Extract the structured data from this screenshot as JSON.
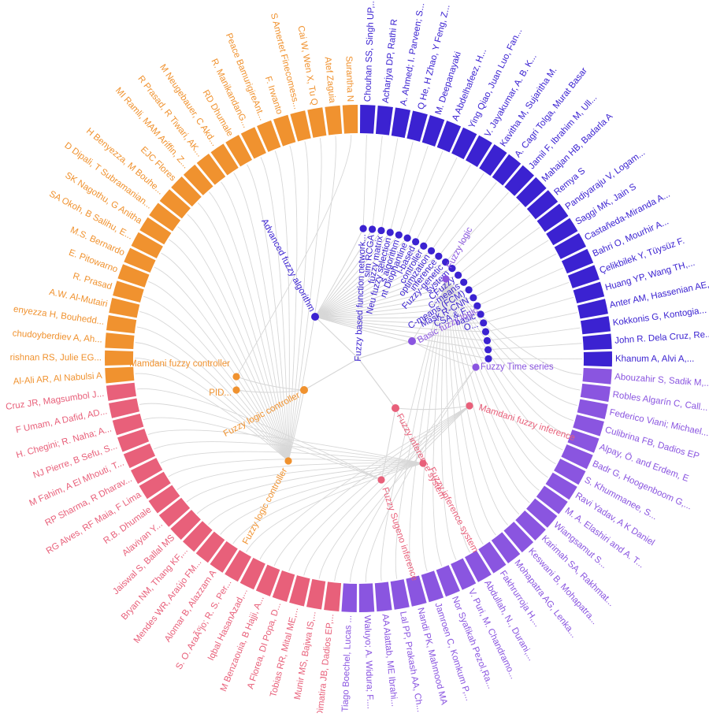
{
  "chart_data": {
    "type": "radial-dendrogram",
    "colors": {
      "advanced": "#3b22d1",
      "basic": "#8a55e0",
      "fis": "#e8607a",
      "flc": "#f0922f",
      "link": "#d7d7d7"
    },
    "groups": [
      {
        "key": "advanced",
        "node_label": "Advanced fuzzy algorithm",
        "children": [
          {
            "label": "Fuzzy based function network...",
            "leaves": [
              "Chouhan SS, Singh UP,..."
            ]
          },
          {
            "label": "sim RCGA",
            "leaves": [
              "Acharjya DP, Rathi R"
            ]
          },
          {
            "label": "fuzzy matrix",
            "leaves": [
              "A. Ahmed; I. Parveen; S..."
            ]
          },
          {
            "label": "Neu fuzzy selection",
            "leaves": [
              "Q He, H Zhao, Y Feng, Z..."
            ]
          },
          {
            "label": "s algorithm",
            "leaves": [
              "M. Deepanayaki"
            ]
          },
          {
            "label": "nt Diophantine",
            "leaves": [
              "A Abdelhafeez, H..."
            ]
          },
          {
            "label": "l-based",
            "leaves": [
              "Ying Qiao, Juan Luo, Fan..."
            ]
          },
          {
            "label": "controller",
            "leaves": [
              "V. Jayakumar, A. B. K..."
            ]
          },
          {
            "label": "optimization",
            "leaves": [
              "Kavitha M, Sujaritha M."
            ]
          },
          {
            "label": "inference",
            "leaves": [
              "A. Cagri Tolga, Murat Basar"
            ]
          },
          {
            "label": "Fuzzy-genetic",
            "leaves": [
              "Jamil F, Ibrahim M, Ull..."
            ]
          },
          {
            "label": "system",
            "leaves": [
              "Mahajan HB, Badarla A"
            ]
          },
          {
            "label": "CFuzzy",
            "leaves": [
              "Remya S"
            ]
          },
          {
            "label": "C-means",
            "leaves": [
              "Pandiyaraju V, Logam..."
            ]
          },
          {
            "label": "C-means (FCM)",
            "leaves": [
              "Saggi MK, Jain S"
            ]
          },
          {
            "label": "Mask R-CNN",
            "leaves": [
              "Castañeda-Miranda A..."
            ]
          },
          {
            "label": "CSA & F...",
            "leaves": [
              "Bahri O, Mourhir A..."
            ]
          },
          {
            "label": "basic",
            "leaves": [
              "Çelikbilek Y, Tüysüz F."
            ]
          },
          {
            "label": "O...",
            "leaves": [
              "Huang YP, Wang TH,..."
            ]
          },
          {
            "label": "",
            "leaves": [
              "Anter AM, Hassenian AE,..."
            ]
          },
          {
            "label": "",
            "leaves": [
              "Kokkonis G, Kontogia..."
            ]
          },
          {
            "label": "",
            "leaves": [
              "John R. Dela Cruz, Re..."
            ]
          },
          {
            "label": "",
            "leaves": [
              "Khanum A, Alvi A,..."
            ]
          }
        ]
      },
      {
        "key": "basic",
        "node_label": "Basic fuzzy logic",
        "children": [
          {
            "label": "Fuzzy logic",
            "leaves": [
              "Abouzahir S, Sadik M,...",
              "Robles Algarín C, Call...",
              "Federico Viani; Michael...",
              "Culibrina FB, Dadios EP",
              "Alpay, Ö. and Erdem, E",
              "Badr G, Hoogenboom G,...",
              "S. Khummanee, S...",
              "Ravi Yadav, A K Daniel",
              "M. A. Elashiri and A. T...",
              "Wiangsamut S...",
              "Karimah SA, Rakhmat...",
              "Keswani B, Mohapatra...",
              "Mohapatra AG, Lenka...",
              "Fakhrurroja H,...",
              "Abdullah, N., Durani,...",
              "V. Puri, M. Chandramo...",
              "Nor Syafikah Pezol,Ra...",
              "Jamroen C, Komkum P,...",
              "Nandi PK, Mahmood MA",
              "Lal PP, Prakash AA, Ch...",
              "AA Alattab, ME Ibrahi..."
            ]
          },
          {
            "label": "Fuzzy Time series",
            "leaves": [
              "Waluyo; A. Widura; F....",
              "Tiago Boechel, Lucas ..."
            ]
          }
        ]
      },
      {
        "key": "fis",
        "node_label": "Fuzzy inference system",
        "children": [
          {
            "label": "Mamdani fuzzy inference",
            "leaves": [
              "Dimatira JB, Dadios EP,...",
              "Munir MS, Bajwa IS,...",
              "Tobias RR, Mital ME,...",
              "A Florea, DI Popa, D...",
              "M Benzaouia, B Hajji, A...",
              "Iqbal HasanAzad,..."
            ]
          },
          {
            "label": "Fuzzy inference system",
            "leaves": [
              "S. O. AraÃºjo; R. S. Per...",
              "Alomar B, Alazzam A",
              "Mendes WR, Araújo FM...",
              "Bryan NM, Thang KF,...",
              "Jaiswal S, Ballal MS",
              "Alaviyan Y...",
              "R.B. Dhumale",
              "RG Alves, RF Maia, F Lima",
              "RP Sharma, R Dharav...",
              "M Fahim, A El Mhouti, T...",
              "NJ Pierre, B Sefu, S..."
            ]
          },
          {
            "label": "Fuzzy Sugeno inference",
            "leaves": [
              "H. Chegini; R. Naha; A...",
              "F Umam, A Dafid, AD...",
              "Cruz JR, Magsumbol J..."
            ]
          }
        ]
      },
      {
        "key": "flc",
        "node_label": "Fuzzy logic controller",
        "children": [
          {
            "label": "Fuzzy logic controller",
            "leaves": [
              "Al-Ali AR, Al Nabulsi A",
              "rishnan RS, Julie EG...",
              "chudoyberdiev A, Ah...",
              "enyezza H, Bouhedd...",
              "A.W. Al-Mutairi",
              "R. Prasad",
              "E. Pitowarno",
              "M.S. Bernardo",
              "SA Okoh, B Salihu, E...",
              "SK Nagothu, G Anitha",
              "D Dipali, T Subramanian...",
              "H Benyezza, M Bouhe...",
              "EJC Flores",
              "MI Ramli, MAM Ariffin, Z...",
              "R Prasad, R Tiwari, AK...",
              "M Neugebauer, C Akd...",
              "RD Dhumale",
              "R. ManikandanG...",
              "Peace BamurigireAnt...",
              "F. Irwanto",
              "S Amertet Finecomess...",
              "Cai W, Wen X, Tu Q",
              "Atef Zaguia"
            ]
          },
          {
            "label": "Mamdani fuzzy controller",
            "leaves": [
              "Surantha N"
            ]
          },
          {
            "label": "PID...",
            "leaves": []
          }
        ]
      }
    ]
  }
}
